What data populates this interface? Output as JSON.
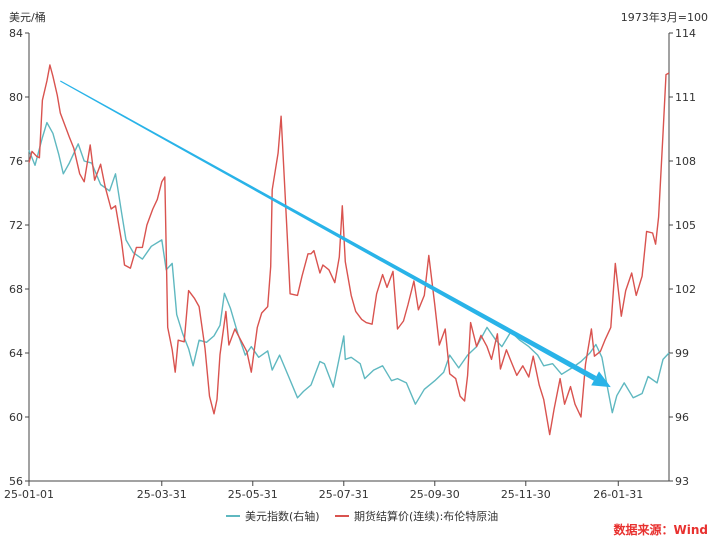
{
  "chart_data": {
    "type": "line",
    "left_axis_unit": "美元/桶",
    "right_axis_unit": "1973年3月=100",
    "x_ticks": [
      "25-01-01",
      "25-03-31",
      "25-05-31",
      "25-07-31",
      "25-09-30",
      "25-11-30",
      "26-01-31"
    ],
    "x_range": [
      "2025-01-01",
      "2026-03-06"
    ],
    "ylim_left": [
      56,
      84
    ],
    "ylim_right": [
      93,
      114
    ],
    "y_ticks_left": [
      56,
      60,
      64,
      68,
      72,
      76,
      80,
      84
    ],
    "y_ticks_right": [
      93,
      96,
      99,
      102,
      105,
      108,
      111,
      114
    ],
    "grid": false,
    "legend_position": "bottom",
    "series": [
      {
        "name": "美元指数(右轴)",
        "axis": "right",
        "color": "#5fb8c0",
        "points": [
          [
            "2025-01-01",
            108.5
          ],
          [
            "2025-01-05",
            107.8
          ],
          [
            "2025-01-10",
            109.1
          ],
          [
            "2025-01-13",
            109.8
          ],
          [
            "2025-01-17",
            109.3
          ],
          [
            "2025-01-21",
            108.3
          ],
          [
            "2025-01-24",
            107.4
          ],
          [
            "2025-01-28",
            107.9
          ],
          [
            "2025-02-03",
            108.8
          ],
          [
            "2025-02-07",
            108.0
          ],
          [
            "2025-02-12",
            107.9
          ],
          [
            "2025-02-18",
            106.9
          ],
          [
            "2025-02-24",
            106.6
          ],
          [
            "2025-02-28",
            107.4
          ],
          [
            "2025-03-04",
            105.6
          ],
          [
            "2025-03-07",
            104.3
          ],
          [
            "2025-03-12",
            103.7
          ],
          [
            "2025-03-18",
            103.4
          ],
          [
            "2025-03-24",
            104.0
          ],
          [
            "2025-03-31",
            104.3
          ],
          [
            "2025-04-03",
            102.9
          ],
          [
            "2025-04-07",
            103.2
          ],
          [
            "2025-04-10",
            100.8
          ],
          [
            "2025-04-14",
            99.9
          ],
          [
            "2025-04-18",
            99.2
          ],
          [
            "2025-04-21",
            98.4
          ],
          [
            "2025-04-25",
            99.6
          ],
          [
            "2025-04-30",
            99.5
          ],
          [
            "2025-05-05",
            99.8
          ],
          [
            "2025-05-09",
            100.3
          ],
          [
            "2025-05-12",
            101.8
          ],
          [
            "2025-05-16",
            101.1
          ],
          [
            "2025-05-21",
            99.9
          ],
          [
            "2025-05-26",
            98.9
          ],
          [
            "2025-05-30",
            99.3
          ],
          [
            "2025-06-04",
            98.8
          ],
          [
            "2025-06-10",
            99.1
          ],
          [
            "2025-06-13",
            98.2
          ],
          [
            "2025-06-18",
            98.9
          ],
          [
            "2025-06-24",
            97.9
          ],
          [
            "2025-06-30",
            96.9
          ],
          [
            "2025-07-04",
            97.2
          ],
          [
            "2025-07-09",
            97.5
          ],
          [
            "2025-07-15",
            98.6
          ],
          [
            "2025-07-18",
            98.5
          ],
          [
            "2025-07-24",
            97.4
          ],
          [
            "2025-07-31",
            99.8
          ],
          [
            "2025-08-01",
            98.7
          ],
          [
            "2025-08-05",
            98.8
          ],
          [
            "2025-08-11",
            98.5
          ],
          [
            "2025-08-14",
            97.8
          ],
          [
            "2025-08-20",
            98.2
          ],
          [
            "2025-08-26",
            98.4
          ],
          [
            "2025-09-01",
            97.7
          ],
          [
            "2025-09-05",
            97.8
          ],
          [
            "2025-09-11",
            97.6
          ],
          [
            "2025-09-17",
            96.6
          ],
          [
            "2025-09-23",
            97.3
          ],
          [
            "2025-09-30",
            97.7
          ],
          [
            "2025-10-06",
            98.1
          ],
          [
            "2025-10-10",
            98.9
          ],
          [
            "2025-10-16",
            98.3
          ],
          [
            "2025-10-22",
            98.9
          ],
          [
            "2025-10-28",
            99.3
          ],
          [
            "2025-11-04",
            100.2
          ],
          [
            "2025-11-10",
            99.6
          ],
          [
            "2025-11-14",
            99.3
          ],
          [
            "2025-11-20",
            100.0
          ],
          [
            "2025-11-26",
            99.6
          ],
          [
            "2025-12-02",
            99.3
          ],
          [
            "2025-12-08",
            98.9
          ],
          [
            "2025-12-12",
            98.4
          ],
          [
            "2025-12-18",
            98.5
          ],
          [
            "2025-12-24",
            98.0
          ],
          [
            "2025-12-31",
            98.3
          ],
          [
            "2026-01-06",
            98.6
          ],
          [
            "2026-01-12",
            99.0
          ],
          [
            "2026-01-16",
            99.4
          ],
          [
            "2026-01-20",
            98.8
          ],
          [
            "2026-01-24",
            97.3
          ],
          [
            "2026-01-27",
            96.2
          ],
          [
            "2026-01-30",
            97.0
          ],
          [
            "2026-02-04",
            97.6
          ],
          [
            "2026-02-10",
            96.9
          ],
          [
            "2026-02-16",
            97.1
          ],
          [
            "2026-02-20",
            97.9
          ],
          [
            "2026-02-26",
            97.6
          ],
          [
            "2026-03-02",
            98.7
          ],
          [
            "2026-03-06",
            99.0
          ]
        ]
      },
      {
        "name": "期货结算价(连续):布伦特原油",
        "axis": "left",
        "color": "#d9534f",
        "points": [
          [
            "2025-01-01",
            75.9
          ],
          [
            "2025-01-03",
            76.6
          ],
          [
            "2025-01-06",
            76.3
          ],
          [
            "2025-01-08",
            76.2
          ],
          [
            "2025-01-10",
            79.8
          ],
          [
            "2025-01-13",
            81.0
          ],
          [
            "2025-01-15",
            82.0
          ],
          [
            "2025-01-17",
            81.3
          ],
          [
            "2025-01-20",
            80.1
          ],
          [
            "2025-01-22",
            79.0
          ],
          [
            "2025-01-24",
            78.5
          ],
          [
            "2025-01-28",
            77.5
          ],
          [
            "2025-01-31",
            76.8
          ],
          [
            "2025-02-04",
            75.2
          ],
          [
            "2025-02-07",
            74.7
          ],
          [
            "2025-02-11",
            77.0
          ],
          [
            "2025-02-14",
            74.8
          ],
          [
            "2025-02-18",
            75.8
          ],
          [
            "2025-02-21",
            74.4
          ],
          [
            "2025-02-25",
            73.0
          ],
          [
            "2025-02-28",
            73.2
          ],
          [
            "2025-03-04",
            71.0
          ],
          [
            "2025-03-06",
            69.5
          ],
          [
            "2025-03-10",
            69.3
          ],
          [
            "2025-03-14",
            70.6
          ],
          [
            "2025-03-18",
            70.6
          ],
          [
            "2025-03-21",
            72.0
          ],
          [
            "2025-03-25",
            73.0
          ],
          [
            "2025-03-28",
            73.6
          ],
          [
            "2025-03-31",
            74.7
          ],
          [
            "2025-04-02",
            75.0
          ],
          [
            "2025-04-04",
            65.6
          ],
          [
            "2025-04-07",
            64.2
          ],
          [
            "2025-04-09",
            62.8
          ],
          [
            "2025-04-11",
            64.8
          ],
          [
            "2025-04-15",
            64.7
          ],
          [
            "2025-04-18",
            67.9
          ],
          [
            "2025-04-22",
            67.4
          ],
          [
            "2025-04-25",
            66.9
          ],
          [
            "2025-04-29",
            64.3
          ],
          [
            "2025-05-02",
            61.3
          ],
          [
            "2025-05-05",
            60.2
          ],
          [
            "2025-05-07",
            61.1
          ],
          [
            "2025-05-09",
            63.9
          ],
          [
            "2025-05-13",
            66.6
          ],
          [
            "2025-05-15",
            64.5
          ],
          [
            "2025-05-19",
            65.5
          ],
          [
            "2025-05-23",
            64.8
          ],
          [
            "2025-05-27",
            64.1
          ],
          [
            "2025-05-30",
            62.8
          ],
          [
            "2025-06-03",
            65.6
          ],
          [
            "2025-06-06",
            66.5
          ],
          [
            "2025-06-10",
            66.9
          ],
          [
            "2025-06-12",
            69.4
          ],
          [
            "2025-06-13",
            74.2
          ],
          [
            "2025-06-17",
            76.5
          ],
          [
            "2025-06-19",
            78.8
          ],
          [
            "2025-06-23",
            71.5
          ],
          [
            "2025-06-25",
            67.7
          ],
          [
            "2025-06-30",
            67.6
          ],
          [
            "2025-07-03",
            68.8
          ],
          [
            "2025-07-07",
            70.2
          ],
          [
            "2025-07-09",
            70.2
          ],
          [
            "2025-07-11",
            70.4
          ],
          [
            "2025-07-15",
            69.0
          ],
          [
            "2025-07-17",
            69.5
          ],
          [
            "2025-07-21",
            69.2
          ],
          [
            "2025-07-25",
            68.4
          ],
          [
            "2025-07-28",
            70.0
          ],
          [
            "2025-07-30",
            73.2
          ],
          [
            "2025-08-01",
            69.7
          ],
          [
            "2025-08-05",
            67.6
          ],
          [
            "2025-08-08",
            66.6
          ],
          [
            "2025-08-12",
            66.1
          ],
          [
            "2025-08-15",
            65.9
          ],
          [
            "2025-08-19",
            65.8
          ],
          [
            "2025-08-22",
            67.7
          ],
          [
            "2025-08-26",
            68.9
          ],
          [
            "2025-08-29",
            68.1
          ],
          [
            "2025-09-02",
            69.1
          ],
          [
            "2025-09-05",
            65.5
          ],
          [
            "2025-09-09",
            66.0
          ],
          [
            "2025-09-12",
            67.0
          ],
          [
            "2025-09-16",
            68.5
          ],
          [
            "2025-09-19",
            66.7
          ],
          [
            "2025-09-23",
            67.6
          ],
          [
            "2025-09-26",
            70.1
          ],
          [
            "2025-09-30",
            67.0
          ],
          [
            "2025-10-03",
            64.5
          ],
          [
            "2025-10-07",
            65.5
          ],
          [
            "2025-10-10",
            62.7
          ],
          [
            "2025-10-14",
            62.4
          ],
          [
            "2025-10-17",
            61.3
          ],
          [
            "2025-10-20",
            61.0
          ],
          [
            "2025-10-22",
            62.6
          ],
          [
            "2025-10-24",
            65.9
          ],
          [
            "2025-10-28",
            64.4
          ],
          [
            "2025-10-31",
            65.1
          ],
          [
            "2025-11-04",
            64.4
          ],
          [
            "2025-11-07",
            63.6
          ],
          [
            "2025-11-11",
            65.2
          ],
          [
            "2025-11-13",
            63.0
          ],
          [
            "2025-11-17",
            64.2
          ],
          [
            "2025-11-20",
            63.5
          ],
          [
            "2025-11-24",
            62.6
          ],
          [
            "2025-11-28",
            63.2
          ],
          [
            "2025-12-02",
            62.5
          ],
          [
            "2025-12-05",
            63.8
          ],
          [
            "2025-12-09",
            62.0
          ],
          [
            "2025-12-12",
            61.1
          ],
          [
            "2025-12-16",
            58.9
          ],
          [
            "2025-12-19",
            60.5
          ],
          [
            "2025-12-23",
            62.4
          ],
          [
            "2025-12-26",
            60.8
          ],
          [
            "2025-12-30",
            61.9
          ],
          [
            "2026-01-02",
            60.8
          ],
          [
            "2026-01-06",
            60.0
          ],
          [
            "2026-01-09",
            63.3
          ],
          [
            "2026-01-13",
            65.5
          ],
          [
            "2026-01-15",
            63.8
          ],
          [
            "2026-01-19",
            64.1
          ],
          [
            "2026-01-22",
            64.8
          ],
          [
            "2026-01-26",
            65.6
          ],
          [
            "2026-01-29",
            69.6
          ],
          [
            "2026-02-02",
            66.3
          ],
          [
            "2026-02-05",
            67.9
          ],
          [
            "2026-02-09",
            69.0
          ],
          [
            "2026-02-12",
            67.6
          ],
          [
            "2026-02-16",
            68.8
          ],
          [
            "2026-02-19",
            71.6
          ],
          [
            "2026-02-23",
            71.5
          ],
          [
            "2026-02-25",
            70.8
          ],
          [
            "2026-02-27",
            72.5
          ],
          [
            "2026-03-02",
            77.7
          ],
          [
            "2026-03-04",
            81.4
          ],
          [
            "2026-03-06",
            81.5
          ]
        ]
      }
    ],
    "trend_arrow": {
      "color": "#29b3e8",
      "from": [
        "2025-01-22",
        81
      ],
      "to": [
        "2026-01-26",
        97.4
      ],
      "to_axis": "right"
    }
  },
  "source": "数据来源：Wind"
}
